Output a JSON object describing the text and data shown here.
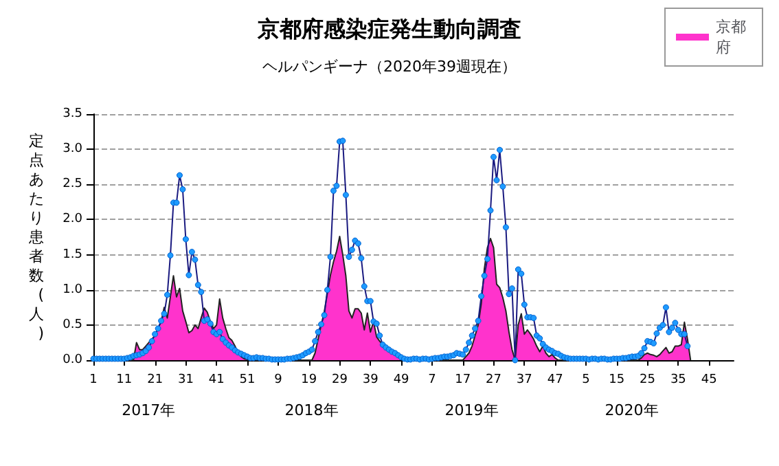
{
  "chart_data": {
    "type": "line",
    "title": "京都府感染症発生動向調査",
    "subtitle": "ヘルパンギーナ（2020年39週現在）",
    "ylabel": "定点あたり患者数(人)",
    "annotations": [
      "2017年",
      "2018年",
      "2019年",
      "2020年"
    ],
    "categories": [
      "1",
      null,
      null,
      null,
      null,
      null,
      null,
      null,
      null,
      null,
      "11",
      null,
      null,
      null,
      null,
      null,
      null,
      null,
      null,
      null,
      "21",
      null,
      null,
      null,
      null,
      null,
      null,
      null,
      null,
      null,
      "31",
      null,
      null,
      null,
      null,
      null,
      null,
      null,
      null,
      null,
      "41",
      null,
      null,
      null,
      null,
      null,
      null,
      null,
      null,
      null,
      "51",
      null,
      null,
      null,
      null,
      null,
      null,
      null,
      null,
      null,
      "9",
      null,
      null,
      null,
      null,
      null,
      null,
      null,
      null,
      null,
      "19",
      null,
      null,
      null,
      null,
      null,
      null,
      null,
      null,
      null,
      "29",
      null,
      null,
      null,
      null,
      null,
      null,
      null,
      null,
      null,
      "39",
      null,
      null,
      null,
      null,
      null,
      null,
      null,
      null,
      null,
      "49",
      null,
      null,
      null,
      null,
      null,
      null,
      null,
      null,
      null,
      "7",
      null,
      null,
      null,
      null,
      null,
      null,
      null,
      null,
      null,
      "17",
      null,
      null,
      null,
      null,
      null,
      null,
      null,
      null,
      null,
      "27",
      null,
      null,
      null,
      null,
      null,
      null,
      null,
      null,
      null,
      "37",
      null,
      null,
      null,
      null,
      null,
      null,
      null,
      null,
      null,
      "47",
      null,
      null,
      null,
      null,
      null,
      null,
      null,
      null,
      null,
      "5",
      null,
      null,
      null,
      null,
      null,
      null,
      null,
      null,
      null,
      "15",
      null,
      null,
      null,
      null,
      null,
      null,
      null,
      null,
      null,
      "25",
      null,
      null,
      null,
      null,
      null,
      null,
      null,
      null,
      null,
      "35",
      null,
      null,
      null,
      null,
      null,
      null,
      null,
      null,
      null,
      "45",
      null,
      null,
      null,
      null,
      null,
      null,
      null,
      null
    ],
    "series": [
      {
        "name": "京都府",
        "type": "area",
        "color": "#ff33cc",
        "marker": "none",
        "values": [
          0,
          0,
          0,
          0,
          0,
          0,
          0,
          0,
          0,
          0,
          0,
          0,
          0,
          0,
          0.25,
          0.15,
          0.15,
          0.2,
          0.25,
          0.3,
          0.35,
          0.45,
          0.55,
          0.75,
          0.6,
          0.9,
          1.2,
          0.9,
          1.02,
          0.7,
          0.55,
          0.39,
          0.42,
          0.5,
          0.45,
          0.6,
          0.74,
          0.68,
          0.55,
          0.45,
          0.5,
          0.87,
          0.6,
          0.45,
          0.32,
          0.28,
          0.2,
          0.1,
          0.05,
          0.02,
          0.01,
          0,
          0,
          0,
          0,
          0,
          0,
          0,
          0,
          0,
          0,
          0,
          0,
          0,
          0,
          0,
          0,
          0,
          0,
          0,
          0,
          0,
          0.1,
          0.3,
          0.5,
          0.69,
          0.95,
          1.21,
          1.4,
          1.55,
          1.76,
          1.5,
          1.2,
          0.7,
          0.6,
          0.73,
          0.73,
          0.67,
          0.43,
          0.67,
          0.4,
          0.55,
          0.33,
          0.27,
          0.22,
          0.2,
          0.15,
          0.12,
          0.1,
          0.08,
          0.05,
          0.02,
          0,
          0,
          0,
          0,
          0,
          0,
          0,
          0,
          0,
          0,
          0,
          0,
          0,
          0,
          0,
          0,
          0,
          0,
          0,
          0.05,
          0.1,
          0.2,
          0.35,
          0.5,
          0.8,
          1.3,
          1.6,
          1.73,
          1.6,
          1.08,
          1.03,
          0.89,
          0.7,
          0.4,
          0.15,
          0,
          0.5,
          0.66,
          0.37,
          0.43,
          0.37,
          0.3,
          0.2,
          0.12,
          0.2,
          0.1,
          0.05,
          0.08,
          0.03,
          0,
          0,
          0,
          0,
          0,
          0,
          0,
          0,
          0,
          0,
          0,
          0,
          0,
          0,
          0,
          0,
          0,
          0,
          0,
          0,
          0,
          0,
          0,
          0,
          0,
          0,
          0,
          0.03,
          0.08,
          0.1,
          0.08,
          0.07,
          0.05,
          0.08,
          0.13,
          0.18,
          0.1,
          0.12,
          0.2,
          0.2,
          0.22,
          0.54,
          0.3,
          0,
          null,
          null,
          null,
          null,
          null,
          null,
          null,
          null,
          null,
          null,
          null,
          null,
          null,
          null
        ]
      },
      {
        "color": "#1e9bff",
        "marker": "circle",
        "values": [
          0.02,
          0.02,
          0.02,
          0.02,
          0.02,
          0.02,
          0.02,
          0.02,
          0.02,
          0.02,
          0.02,
          0.03,
          0.04,
          0.06,
          0.07,
          0.08,
          0.1,
          0.13,
          0.18,
          0.27,
          0.37,
          0.45,
          0.56,
          0.66,
          0.93,
          1.49,
          2.24,
          2.24,
          2.63,
          2.43,
          1.72,
          1.21,
          1.54,
          1.43,
          1.07,
          0.97,
          0.56,
          0.58,
          0.52,
          0.4,
          0.37,
          0.4,
          0.3,
          0.25,
          0.21,
          0.18,
          0.14,
          0.11,
          0.09,
          0.07,
          0.05,
          0.03,
          0.03,
          0.04,
          0.03,
          0.03,
          0.02,
          0.02,
          0.01,
          0.01,
          0.01,
          0.01,
          0.01,
          0.02,
          0.02,
          0.03,
          0.04,
          0.05,
          0.07,
          0.1,
          0.12,
          0.15,
          0.27,
          0.4,
          0.51,
          0.64,
          1.0,
          1.47,
          2.41,
          2.48,
          3.11,
          3.12,
          2.35,
          1.47,
          1.57,
          1.7,
          1.66,
          1.45,
          1.05,
          0.84,
          0.84,
          0.55,
          0.52,
          0.35,
          0.22,
          0.18,
          0.15,
          0.12,
          0.1,
          0.07,
          0.04,
          0.02,
          0.01,
          0.01,
          0.02,
          0.02,
          0.01,
          0.02,
          0.02,
          0.01,
          0.02,
          0.03,
          0.03,
          0.04,
          0.05,
          0.05,
          0.06,
          0.07,
          0.1,
          0.09,
          0.08,
          0.15,
          0.25,
          0.35,
          0.45,
          0.56,
          0.91,
          1.2,
          1.44,
          2.13,
          2.89,
          2.56,
          2.99,
          2.47,
          1.89,
          0.94,
          1.02,
          0,
          1.29,
          1.23,
          0.79,
          0.61,
          0.61,
          0.6,
          0.35,
          0.31,
          0.23,
          0.18,
          0.15,
          0.13,
          0.1,
          0.09,
          0.06,
          0.04,
          0.03,
          0.02,
          0.02,
          0.02,
          0.02,
          0.02,
          0.02,
          0.01,
          0.02,
          0.02,
          0.01,
          0.02,
          0.02,
          0.01,
          0.01,
          0.02,
          0.02,
          0.02,
          0.03,
          0.03,
          0.04,
          0.05,
          0.05,
          0.06,
          0.1,
          0.17,
          0.27,
          0.26,
          0.24,
          0.38,
          0.46,
          0.5,
          0.75,
          0.4,
          0.46,
          0.53,
          0.43,
          0.37,
          0.37,
          0.2,
          null,
          null,
          null,
          null,
          null,
          null,
          null,
          null,
          null,
          null,
          null,
          null,
          null,
          null,
          null
        ]
      }
    ],
    "ylim": [
      0,
      3.5
    ],
    "yticks": [
      {
        "value": 0,
        "label": "0.0"
      },
      {
        "value": 0.5,
        "label": "0.5"
      },
      {
        "value": 1,
        "label": "1.0"
      },
      {
        "value": 1.5,
        "label": "1.5"
      },
      {
        "value": 2,
        "label": "2.0"
      },
      {
        "value": 2.5,
        "label": "2.5"
      },
      {
        "value": 3,
        "label": "3.0"
      },
      {
        "value": 3.5,
        "label": "3.5"
      }
    ],
    "grid": "y",
    "legend": "top right"
  }
}
